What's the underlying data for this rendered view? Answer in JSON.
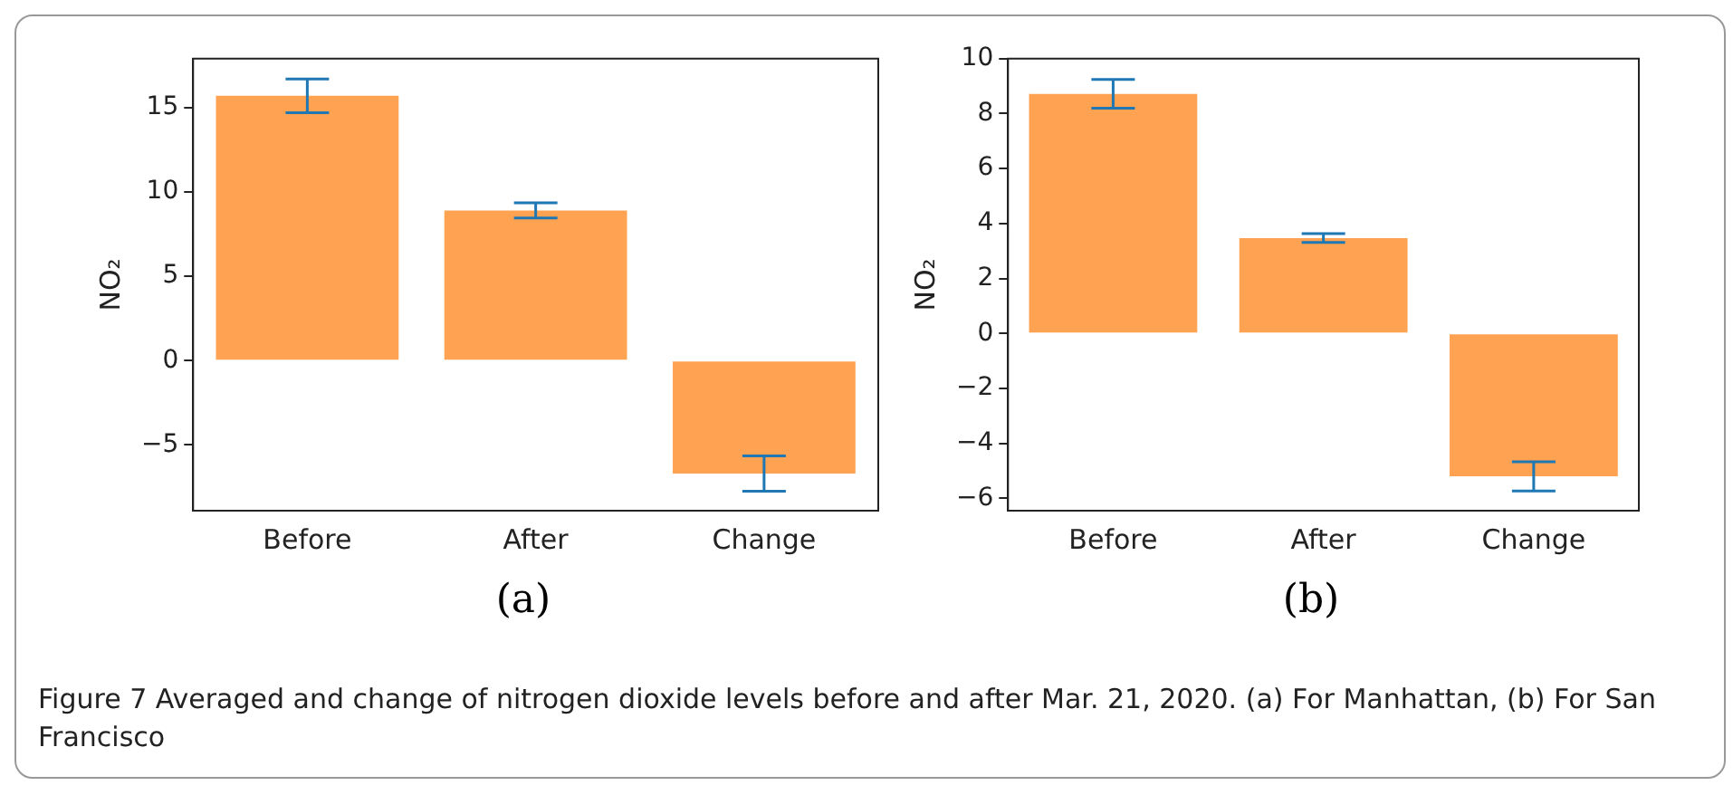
{
  "chart_data": [
    {
      "type": "bar",
      "categories": [
        "Before",
        "After",
        "Change"
      ],
      "values": [
        15.7,
        8.9,
        -6.7
      ],
      "errors": [
        1.0,
        0.45,
        1.05
      ],
      "color": "#ffa352",
      "ylabel": "NO₂",
      "ylim": [
        -8.9,
        17.9
      ],
      "yticks": [
        {
          "value": -5,
          "label": "−5"
        },
        0,
        5,
        10,
        15
      ],
      "annotations": [
        "(a)",
        "Figure 7  Averaged and change of nitrogen dioxide levels before and after Mar. 21, 2020. (a) For Manhattan, (b) For San Francisco"
      ]
    },
    {
      "type": "bar",
      "categories": [
        "Before",
        "After",
        "Change"
      ],
      "values": [
        8.72,
        3.47,
        -5.2
      ],
      "errors": [
        0.52,
        0.16,
        0.53
      ],
      "color": "#ffa352",
      "ylabel": "NO₂",
      "ylim": [
        -6.45,
        10
      ],
      "yticks": [
        {
          "value": -6,
          "label": "−6"
        },
        {
          "value": -4,
          "label": "−4"
        },
        {
          "value": -2,
          "label": "−2"
        },
        0,
        2,
        4,
        6,
        8,
        10
      ],
      "annotations": [
        "(b)"
      ]
    }
  ]
}
